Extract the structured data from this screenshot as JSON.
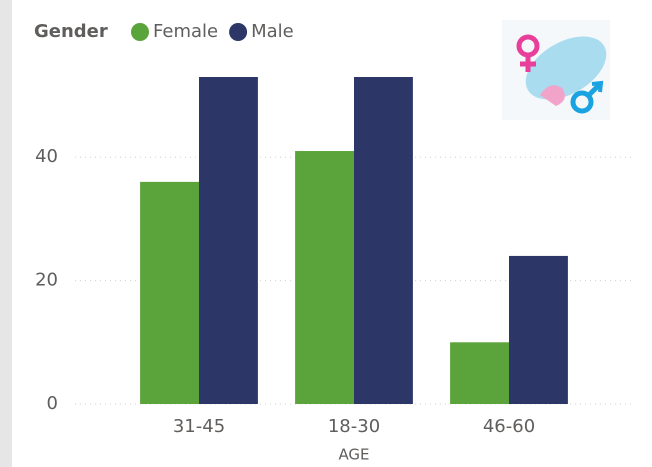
{
  "chart_data": {
    "type": "bar",
    "legend_title": "Gender",
    "x_label": "AGE",
    "categories": [
      "31-45",
      "18-30",
      "46-60"
    ],
    "series": [
      {
        "name": "Female",
        "color": "#5ba33b",
        "values": [
          36,
          41,
          10
        ]
      },
      {
        "name": "Male",
        "color": "#2c3768",
        "values": [
          53,
          53,
          24
        ]
      }
    ],
    "ylim": [
      0,
      53
    ],
    "yticks": [
      0,
      20,
      40
    ],
    "grid": true
  }
}
